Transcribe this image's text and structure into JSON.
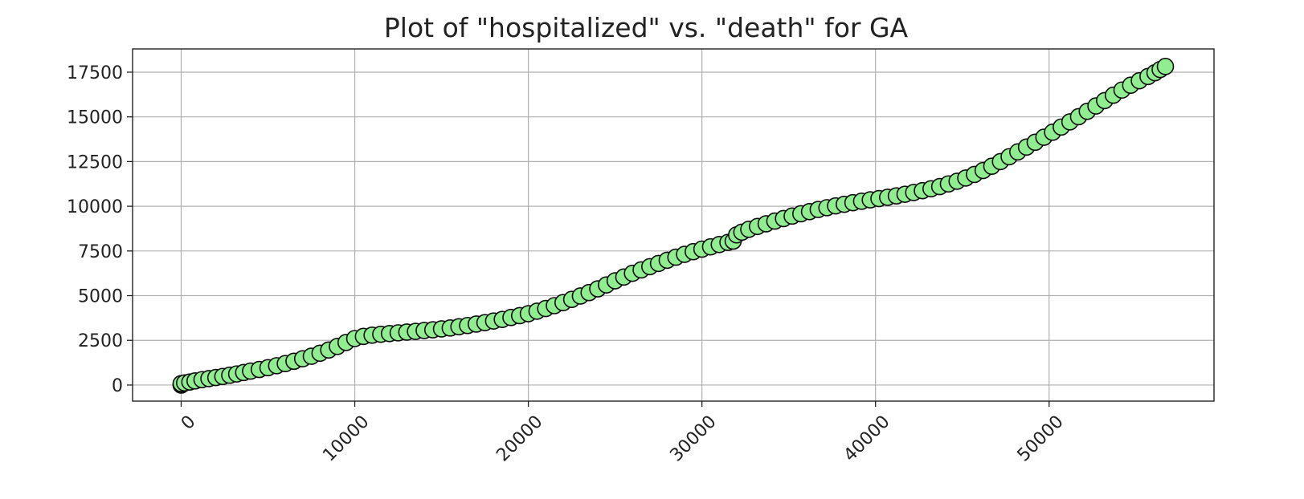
{
  "chart_data": {
    "type": "scatter",
    "title": "Plot of \"hospitalized\" vs. \"death\" for GA",
    "xlabel": "",
    "ylabel": "",
    "xlim": [
      -2800,
      59500
    ],
    "ylim": [
      -900,
      18800
    ],
    "xticks": [
      0,
      10000,
      20000,
      30000,
      40000,
      50000
    ],
    "yticks": [
      0,
      2500,
      5000,
      7500,
      10000,
      12500,
      15000,
      17500
    ],
    "x_tick_labels": [
      "0",
      "10000",
      "20000",
      "30000",
      "40000",
      "50000"
    ],
    "y_tick_labels": [
      "0",
      "2500",
      "5000",
      "7500",
      "10000",
      "12500",
      "15000",
      "17500"
    ],
    "x_tick_rotation": 45,
    "grid": true,
    "legend": "none",
    "marker_face_color": "#90ee90",
    "marker_edge_color": "#0d0d0d",
    "series": [
      {
        "x": [
          0,
          0,
          0,
          200,
          500,
          800,
          1200,
          1600,
          2000,
          2400,
          2800,
          3200,
          3600,
          4000,
          4500,
          5000,
          5500,
          6000,
          6500,
          7000,
          7500,
          8000,
          8500,
          9000,
          9500,
          10000,
          10500,
          11000,
          11500,
          12000,
          12500,
          13000,
          13500,
          14000,
          14500,
          15000,
          15500,
          16000,
          16500,
          17000,
          17500,
          18000,
          18500,
          19000,
          19500,
          20000,
          20500,
          21000,
          21500,
          22000,
          22500,
          23000,
          23500,
          24000,
          24500,
          25000,
          25500,
          26000,
          26500,
          27000,
          27500,
          28000,
          28500,
          29000,
          29500,
          30000,
          30500,
          31000,
          31500,
          31800,
          32000,
          32300,
          32700,
          33200,
          33700,
          34200,
          34700,
          35200,
          35700,
          36200,
          36700,
          37200,
          37700,
          38200,
          38700,
          39200,
          39700,
          40200,
          40700,
          41200,
          41700,
          42200,
          42700,
          43200,
          43700,
          44200,
          44700,
          45200,
          45700,
          46200,
          46700,
          47200,
          47700,
          48200,
          48700,
          49200,
          49700,
          50200,
          50700,
          51200,
          51700,
          52200,
          52700,
          53200,
          53700,
          54200,
          54700,
          55200,
          55700,
          56100,
          56400,
          56700
        ],
        "y": [
          0,
          30,
          80,
          120,
          170,
          230,
          300,
          360,
          420,
          480,
          550,
          620,
          700,
          780,
          870,
          970,
          1080,
          1200,
          1330,
          1470,
          1610,
          1780,
          1960,
          2160,
          2380,
          2600,
          2720,
          2790,
          2840,
          2880,
          2920,
          2960,
          3000,
          3050,
          3090,
          3140,
          3190,
          3260,
          3330,
          3410,
          3490,
          3580,
          3670,
          3780,
          3880,
          3990,
          4130,
          4280,
          4440,
          4610,
          4790,
          4980,
          5170,
          5380,
          5600,
          5830,
          6040,
          6250,
          6440,
          6620,
          6800,
          6980,
          7150,
          7310,
          7460,
          7600,
          7730,
          7860,
          7980,
          8050,
          8400,
          8550,
          8710,
          8870,
          9020,
          9170,
          9310,
          9450,
          9580,
          9700,
          9820,
          9920,
          10020,
          10110,
          10200,
          10280,
          10360,
          10430,
          10500,
          10580,
          10670,
          10770,
          10870,
          10980,
          11100,
          11250,
          11400,
          11580,
          11780,
          12000,
          12240,
          12500,
          12770,
          13040,
          13310,
          13580,
          13860,
          14140,
          14430,
          14720,
          15010,
          15310,
          15610,
          15910,
          16210,
          16500,
          16770,
          17020,
          17260,
          17470,
          17650,
          17820
        ]
      }
    ]
  }
}
